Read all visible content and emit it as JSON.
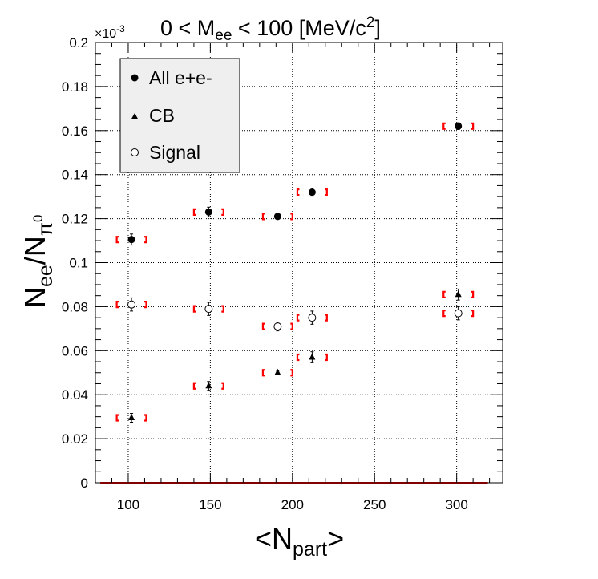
{
  "chart_data": {
    "type": "scatter",
    "title": {
      "pre": "0 < M",
      "sub": "ee",
      "post": " < 100 [MeV/c",
      "sup": "2",
      "end": "]"
    },
    "xlabel": {
      "pre": "<N",
      "sub": "part",
      "post": ">"
    },
    "ylabel": {
      "base": "N",
      "sub1": "ee",
      "slash": "/N",
      "sub2": "π",
      "sup2": "0"
    },
    "y_exponent": "×10",
    "y_exponent_power": "-3",
    "xlim": [
      80,
      328
    ],
    "ylim": [
      0,
      0.2
    ],
    "x_ticks": [
      100,
      150,
      200,
      250,
      300
    ],
    "x_tick_labels": [
      "100",
      "150",
      "200",
      "250",
      "300"
    ],
    "y_ticks": [
      0,
      0.02,
      0.04,
      0.06,
      0.08,
      0.1,
      0.12,
      0.14,
      0.16,
      0.18,
      0.2
    ],
    "y_tick_labels": [
      "0",
      "0.02",
      "0.04",
      "0.06",
      "0.08",
      "0.1",
      "0.12",
      "0.14",
      "0.16",
      "0.18",
      "0.2"
    ],
    "grid": true,
    "legend_position": "top-left",
    "series": [
      {
        "name": "All e+e-",
        "marker": "filled-circle",
        "x": [
          102,
          149,
          191,
          212,
          301
        ],
        "y": [
          0.1105,
          0.123,
          0.121,
          0.132,
          0.162
        ],
        "yerr": [
          0.0025,
          0.0022,
          0.0012,
          0.0018,
          0.0015
        ]
      },
      {
        "name": "CB",
        "marker": "triangle",
        "x": [
          102,
          149,
          191,
          212,
          301
        ],
        "y": [
          0.0295,
          0.044,
          0.05,
          0.057,
          0.0855
        ],
        "yerr": [
          0.002,
          0.002,
          0.001,
          0.0025,
          0.0025
        ]
      },
      {
        "name": "Signal",
        "marker": "open-circle",
        "x": [
          102,
          149,
          191,
          212,
          301
        ],
        "y": [
          0.081,
          0.079,
          0.071,
          0.075,
          0.077
        ],
        "yerr": [
          0.003,
          0.003,
          0.002,
          0.003,
          0.003
        ]
      }
    ],
    "systematic_bracket_half_width": 9,
    "systematic_color": "#ff0000",
    "baseline": {
      "color": "#ff0000",
      "x_range": [
        83,
        319
      ],
      "y": 0
    }
  }
}
